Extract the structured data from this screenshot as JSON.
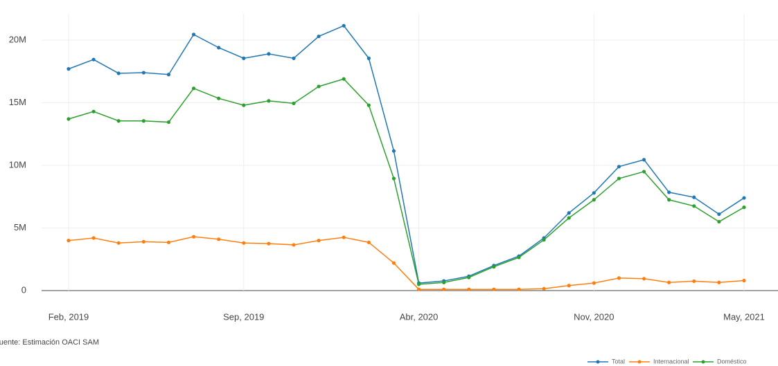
{
  "chart_data": {
    "type": "line",
    "x": [
      "2019-02",
      "2019-03",
      "2019-04",
      "2019-05",
      "2019-06",
      "2019-07",
      "2019-08",
      "2019-09",
      "2019-10",
      "2019-11",
      "2019-12",
      "2020-01",
      "2020-02",
      "2020-03",
      "2020-04",
      "2020-05",
      "2020-06",
      "2020-07",
      "2020-08",
      "2020-09",
      "2020-10",
      "2020-11",
      "2020-12",
      "2021-01",
      "2021-02",
      "2021-03",
      "2021-04",
      "2021-05"
    ],
    "xlim": [
      "2019-02",
      "2021-05"
    ],
    "xticks": [
      {
        "value": "2019-02",
        "label": "Feb, 2019"
      },
      {
        "value": "2019-09",
        "label": "Sep, 2019"
      },
      {
        "value": "2020-04",
        "label": "Abr, 2020"
      },
      {
        "value": "2020-11",
        "label": "Nov, 2020"
      },
      {
        "value": "2021-05",
        "label": "May, 2021"
      }
    ],
    "ylim": [
      0,
      20000000
    ],
    "yticks": [
      0,
      {
        "value": 5000000,
        "label": "5M"
      },
      {
        "value": 10000000,
        "label": "10M"
      },
      {
        "value": 15000000,
        "label": "15M"
      },
      {
        "value": 20000000,
        "label": "20M"
      }
    ],
    "grid": true,
    "legend": "bottom-right",
    "source": "Fuente: Estimación OACI SAM",
    "series": [
      {
        "name": "Total",
        "color": "#1f77b4",
        "values": [
          17700000,
          18450000,
          17350000,
          17400000,
          17250000,
          20450000,
          19400000,
          18550000,
          18900000,
          18550000,
          20300000,
          21150000,
          18550000,
          11150000,
          600000,
          770000,
          1150000,
          2000000,
          2750000,
          4200000,
          6200000,
          7800000,
          9900000,
          10450000,
          7850000,
          7450000,
          6100000,
          7400000
        ]
      },
      {
        "name": "Internacional",
        "color": "#ff7f0e",
        "values": [
          4000000,
          4200000,
          3800000,
          3900000,
          3850000,
          4300000,
          4100000,
          3800000,
          3750000,
          3650000,
          4000000,
          4250000,
          3850000,
          2200000,
          100000,
          100000,
          100000,
          100000,
          100000,
          150000,
          400000,
          600000,
          1000000,
          950000,
          650000,
          750000,
          650000,
          800000
        ]
      },
      {
        "name": "Doméstico",
        "color": "#2ca02c",
        "values": [
          13700000,
          14300000,
          13550000,
          13550000,
          13450000,
          16150000,
          15350000,
          14800000,
          15150000,
          14950000,
          16300000,
          16900000,
          14800000,
          8950000,
          500000,
          650000,
          1050000,
          1900000,
          2650000,
          4050000,
          5800000,
          7250000,
          8950000,
          9500000,
          7250000,
          6750000,
          5500000,
          6650000
        ]
      }
    ]
  }
}
